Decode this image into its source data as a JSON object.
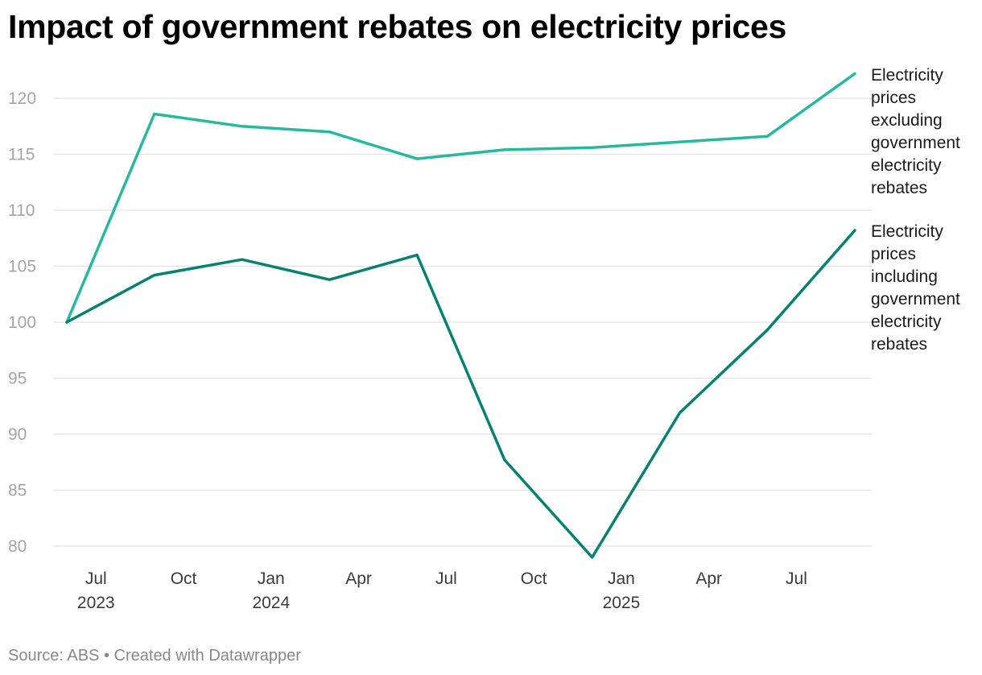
{
  "title": "Impact of government rebates on electricity prices",
  "footer": {
    "source": "Source: ABS",
    "separator": " • ",
    "credit": "Created with Datawrapper"
  },
  "chart_data": {
    "type": "line",
    "title": "Impact of government rebates on electricity prices",
    "xlabel": "",
    "ylabel": "",
    "ylim": [
      80,
      120
    ],
    "yticks": [
      80,
      85,
      90,
      95,
      100,
      105,
      110,
      115,
      120
    ],
    "grid": true,
    "legend": "direct labels at line ends (right)",
    "x": [
      "2023-06",
      "2023-09",
      "2023-12",
      "2024-03",
      "2024-06",
      "2024-09",
      "2024-12",
      "2025-03",
      "2025-06",
      "2025-09"
    ],
    "xticks": [
      {
        "date": "2023-07",
        "label": "Jul",
        "year": "2023"
      },
      {
        "date": "2023-10",
        "label": "Oct",
        "year": ""
      },
      {
        "date": "2024-01",
        "label": "Jan",
        "year": "2024"
      },
      {
        "date": "2024-04",
        "label": "Apr",
        "year": ""
      },
      {
        "date": "2024-07",
        "label": "Jul",
        "year": ""
      },
      {
        "date": "2024-10",
        "label": "Oct",
        "year": ""
      },
      {
        "date": "2025-01",
        "label": "Jan",
        "year": "2025"
      },
      {
        "date": "2025-04",
        "label": "Apr",
        "year": ""
      },
      {
        "date": "2025-07",
        "label": "Jul",
        "year": ""
      }
    ],
    "series": [
      {
        "name": "Electricity prices excluding government electricity rebates",
        "label_lines": [
          "Electricity",
          "prices",
          "excluding",
          "government",
          "electricity",
          "rebates"
        ],
        "color": "#27b99b",
        "values": [
          100,
          118.6,
          117.5,
          117.0,
          114.6,
          115.4,
          115.6,
          116.1,
          116.6,
          122.2
        ]
      },
      {
        "name": "Electricity prices including government electricity rebates",
        "label_lines": [
          "Electricity",
          "prices",
          "including",
          "government",
          "electricity",
          "rebates"
        ],
        "color": "#07826f",
        "values": [
          100,
          104.2,
          105.6,
          103.8,
          106.0,
          87.7,
          79.0,
          91.9,
          99.3,
          108.2
        ]
      }
    ]
  }
}
